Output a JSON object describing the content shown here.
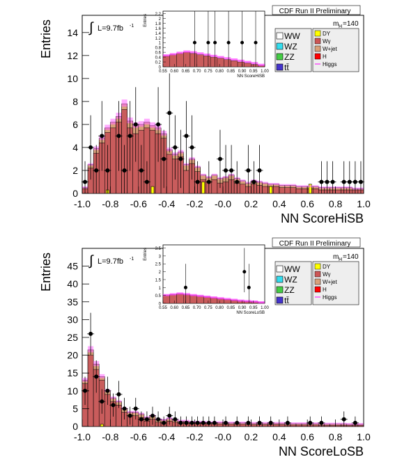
{
  "chart_data": [
    {
      "type": "bar",
      "id": "top",
      "title": "CDF Run II Preliminary",
      "xlabel": "NN ScoreHiSB",
      "ylabel": "Entries",
      "lumi_label": "L=9.7fb",
      "lumi_sup": "-1",
      "mass_label": "m",
      "mass_sub": "H",
      "mass_value": "=140",
      "xlim": [
        -1.0,
        1.0
      ],
      "ylim": [
        0,
        15.5
      ],
      "x_ticks": [
        "-1.0",
        "-0.8",
        "-0.6",
        "-0.4",
        "-0.2",
        "-0.0",
        "0.2",
        "0.4",
        "0.6",
        "0.8",
        "1.0"
      ],
      "y_ticks": [
        "0",
        "2",
        "4",
        "6",
        "8",
        "10",
        "12",
        "14"
      ],
      "legend_left": [
        "WW",
        "WZ",
        "ZZ",
        "tt̄"
      ],
      "legend_right": [
        "DY",
        "Wγ",
        "W+jet",
        "H",
        "Higgs"
      ],
      "colors": {
        "WW": "#ffffff",
        "WZ": "#33ddee",
        "ZZ": "#44cc44",
        "tt": "#4433cc",
        "DY": "#ffff00",
        "Wgamma": "#cc5555",
        "Wjet": "#d9a07a",
        "H": "#ff0000",
        "Higgs": "#ff00ff"
      },
      "bin_edges_start": -1.0,
      "bin_width": 0.04,
      "series": [
        {
          "name": "Wγ",
          "values": [
            0.4,
            2.2,
            3.5,
            4.4,
            5.3,
            5.7,
            6.2,
            7.3,
            5.7,
            5.2,
            5.5,
            5.7,
            5.5,
            5.2,
            4.8,
            3.4,
            3.0,
            3.2,
            2.0,
            2.6,
            1.9,
            1.2,
            1.0,
            1.2,
            0.9,
            1.0,
            1.2,
            0.9,
            0.8,
            0.6,
            0.8,
            0.7,
            0.6,
            0.6,
            0.6,
            0.5,
            0.5,
            0.5,
            0.4,
            0.4,
            0.4,
            0.4,
            0.3,
            0.3,
            0.3,
            0.3,
            0.3,
            0.3,
            0.3,
            0.3
          ]
        },
        {
          "name": "total",
          "values": [
            0.5,
            2.5,
            3.9,
            4.8,
            5.7,
            6.2,
            6.7,
            7.8,
            6.3,
            5.9,
            6.0,
            6.2,
            5.9,
            5.7,
            5.2,
            3.8,
            3.4,
            3.6,
            2.5,
            3.0,
            2.3,
            1.6,
            1.4,
            1.6,
            1.3,
            1.4,
            1.6,
            1.3,
            1.1,
            0.9,
            1.1,
            1.0,
            0.9,
            0.8,
            0.8,
            0.7,
            0.7,
            0.7,
            0.6,
            0.6,
            0.6,
            0.6,
            0.5,
            0.5,
            0.5,
            0.5,
            0.5,
            0.5,
            0.4,
            0.4
          ]
        },
        {
          "name": "DY",
          "values": [
            0,
            0,
            0,
            0,
            0.3,
            0,
            0,
            0,
            0,
            0,
            0,
            0,
            0.6,
            0,
            0,
            0,
            0,
            0,
            0,
            0,
            0,
            1.0,
            0,
            0,
            0,
            0,
            0,
            0,
            0,
            0,
            0,
            0,
            0,
            0.6,
            0,
            0,
            0,
            0,
            0,
            0,
            0.8,
            0,
            0,
            0,
            0,
            0,
            0,
            0,
            0,
            0
          ]
        },
        {
          "name": "Data",
          "x": [
            -0.98,
            -0.94,
            -0.9,
            -0.86,
            -0.82,
            -0.74,
            -0.7,
            -0.66,
            -0.62,
            -0.58,
            -0.54,
            -0.46,
            -0.42,
            -0.38,
            -0.34,
            -0.3,
            -0.26,
            -0.22,
            -0.18,
            -0.1,
            -0.02,
            0.02,
            0.06,
            0.1,
            0.18,
            0.22,
            0.26,
            0.7,
            0.74,
            0.78,
            0.86,
            0.9,
            0.94,
            0.98
          ],
          "values": [
            1,
            4,
            2,
            5,
            2,
            5,
            2,
            5,
            6,
            2,
            1,
            6,
            3,
            7,
            4,
            3,
            5,
            4,
            1,
            1,
            3,
            2,
            2,
            1,
            2,
            1,
            2,
            1,
            1,
            1,
            1,
            1,
            1,
            1
          ]
        }
      ],
      "inset": {
        "xlabel": "NN ScoreHiSB",
        "ylabel": "Entries",
        "x_ticks": [
          "0.55",
          "0.60",
          "0.65",
          "0.70",
          "0.75",
          "0.80",
          "0.85",
          "0.90",
          "0.95",
          "1.00"
        ],
        "y_ticks": [
          "0",
          "0.2",
          "0.4",
          "0.6",
          "0.8",
          "1",
          "1.2",
          "1.4",
          "1.6",
          "1.8",
          "2",
          "2.2"
        ],
        "xlim": [
          0.55,
          1.0
        ],
        "ylim": [
          0,
          2.3
        ],
        "background": [
          0.45,
          0.5,
          0.55,
          0.6,
          0.55,
          0.5,
          0.45,
          0.4,
          0.35,
          0.3,
          0.25,
          0.2,
          0.15,
          0.1,
          0.05
        ],
        "signal": [
          0.47,
          0.52,
          0.58,
          0.63,
          0.6,
          0.55,
          0.5,
          0.45,
          0.4,
          0.35,
          0.3,
          0.25,
          0.2,
          0.15,
          0.08
        ],
        "data_x": [
          0.69,
          0.75,
          0.78,
          0.84,
          0.9,
          0.96
        ],
        "data_y": [
          1,
          1,
          1,
          1,
          1,
          1
        ]
      }
    },
    {
      "type": "bar",
      "id": "bottom",
      "title": "CDF Run II Preliminary",
      "xlabel": "NN ScoreLoSB",
      "ylabel": "Entries",
      "lumi_label": "L=9.7fb",
      "lumi_sup": "-1",
      "mass_label": "m",
      "mass_sub": "H",
      "mass_value": "=140",
      "xlim": [
        -1.0,
        1.0
      ],
      "ylim": [
        0,
        50
      ],
      "x_ticks": [
        "-1.0",
        "-0.8",
        "-0.6",
        "-0.4",
        "-0.2",
        "-0.0",
        "0.2",
        "0.4",
        "0.6",
        "0.8",
        "1.0"
      ],
      "y_ticks": [
        "0",
        "5",
        "10",
        "15",
        "20",
        "25",
        "30",
        "35",
        "40",
        "45"
      ],
      "legend_left": [
        "WW",
        "WZ",
        "ZZ",
        "tt̄"
      ],
      "legend_right": [
        "DY",
        "Wγ",
        "W+jet",
        "H",
        "Higgs"
      ],
      "bin_edges_start": -1.0,
      "bin_width": 0.04,
      "series": [
        {
          "name": "Wγ",
          "values": [
            12,
            20,
            16,
            13,
            9,
            7,
            6,
            4,
            3,
            3,
            2.5,
            1.5,
            2,
            1.2,
            1,
            1.5,
            1.2,
            1,
            1,
            0.8,
            0.8,
            0.8,
            0.7,
            0.7,
            0.7,
            0.6,
            0.6,
            0.6,
            0.6,
            0.5,
            0.5,
            0.5,
            0.5,
            0.5,
            0.5,
            0.5,
            0.4,
            0.4,
            0.4,
            0.4,
            0.4,
            0.4,
            0.3,
            0.3,
            0.3,
            0.3,
            0.3,
            0.3,
            0.3,
            0.3
          ]
        },
        {
          "name": "total",
          "values": [
            13,
            21.5,
            17.5,
            14,
            10,
            8,
            7,
            5,
            4,
            4,
            3.5,
            2.5,
            3,
            2,
            1.8,
            2.2,
            1.8,
            1.5,
            1.5,
            1.2,
            1.2,
            1.2,
            1.1,
            1.1,
            1.1,
            1,
            1,
            1,
            1,
            0.9,
            0.9,
            0.9,
            0.9,
            0.9,
            0.9,
            0.9,
            0.8,
            0.8,
            0.8,
            0.8,
            0.8,
            0.8,
            0.7,
            0.7,
            0.7,
            0.7,
            0.7,
            0.6,
            0.6,
            0.6
          ]
        },
        {
          "name": "DY",
          "values": [
            0,
            0,
            0,
            0.6,
            0,
            0,
            0,
            0,
            0,
            0,
            0,
            0,
            0,
            0,
            0,
            0,
            0,
            0,
            0,
            0,
            0,
            0,
            0,
            0,
            0,
            0,
            0,
            0,
            0,
            0,
            0,
            0,
            0,
            0,
            0,
            0,
            0,
            0,
            0,
            0,
            0,
            0,
            0,
            0,
            0,
            0,
            0,
            0,
            0,
            0
          ]
        },
        {
          "name": "Data",
          "x": [
            -0.98,
            -0.94,
            -0.9,
            -0.86,
            -0.82,
            -0.78,
            -0.74,
            -0.7,
            -0.66,
            -0.62,
            -0.58,
            -0.54,
            -0.5,
            -0.46,
            -0.42,
            -0.38,
            -0.34,
            -0.3,
            -0.26,
            -0.22,
            -0.18,
            -0.14,
            -0.1,
            -0.06,
            0.02,
            0.1,
            0.18,
            0.26,
            0.34,
            0.46,
            0.62,
            0.7,
            0.86,
            0.94
          ],
          "values": [
            10,
            26,
            14,
            7,
            10,
            6,
            9,
            5,
            3,
            5,
            2,
            2,
            3,
            2,
            1,
            3,
            2,
            1,
            1,
            1,
            1,
            1,
            1,
            1,
            1,
            1,
            1,
            1,
            1,
            1,
            1,
            1,
            2,
            1
          ]
        }
      ],
      "inset": {
        "xlabel": "NN ScoreLoSB",
        "ylabel": "Entries",
        "x_ticks": [
          "0.55",
          "0.60",
          "0.65",
          "0.70",
          "0.75",
          "0.80",
          "0.85",
          "0.90",
          "0.95",
          "1.00"
        ],
        "y_ticks": [
          "0",
          "0.5",
          "1",
          "1.5",
          "2",
          "2.5",
          "3",
          "3.5"
        ],
        "xlim": [
          0.55,
          1.0
        ],
        "ylim": [
          0,
          3.7
        ],
        "background": [
          0.5,
          0.55,
          0.6,
          0.55,
          0.5,
          0.45,
          0.4,
          0.35,
          0.3,
          0.25,
          0.2,
          0.15,
          0.12,
          0.1,
          0.05
        ],
        "signal": [
          0.52,
          0.57,
          0.62,
          0.58,
          0.52,
          0.47,
          0.42,
          0.37,
          0.32,
          0.27,
          0.22,
          0.17,
          0.14,
          0.11,
          0.06
        ],
        "data_x": [
          0.65,
          0.91,
          0.93
        ],
        "data_y": [
          1,
          2,
          1
        ]
      }
    }
  ]
}
